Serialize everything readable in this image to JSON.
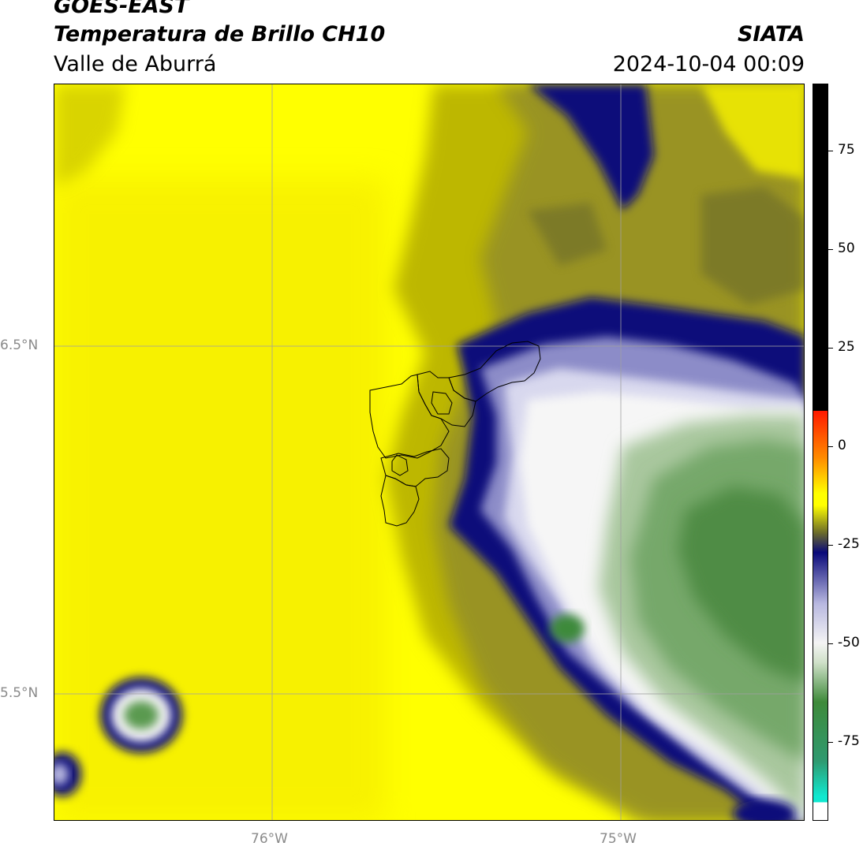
{
  "header": {
    "satellite": "GOES-EAST",
    "product": "Temperatura de Brillo CH10",
    "region": "Valle de Aburrá",
    "organization": "SIATA",
    "timestamp": "2024-10-04 00:09"
  },
  "axes": {
    "x_ticks": [
      {
        "label": "76°W",
        "value": -76.0
      },
      {
        "label": "75°W",
        "value": -75.0
      }
    ],
    "y_ticks": [
      {
        "label": "6.5°N",
        "value": 6.5
      },
      {
        "label": "5.5°N",
        "value": 5.5
      }
    ],
    "gridlines": true
  },
  "colorbar": {
    "labels": [
      "75",
      "50",
      "25",
      "0",
      "-25",
      "-50",
      "-75"
    ],
    "values": [
      75,
      50,
      25,
      0,
      -25,
      -50,
      -75
    ],
    "range": [
      -95,
      92
    ],
    "colors": {
      "hot": "#000000",
      "warm_top": "#ff1a00",
      "orange": "#ff8c00",
      "yellow": "#ffff00",
      "olive": "#6b6b2a",
      "navy": "#0a0a7a",
      "lavender": "#b8b8e0",
      "white": "#f4f4f4",
      "green": "#3e8a3a",
      "teal": "#10e8d0"
    }
  },
  "colors": {
    "background_yellow": "#ffff00",
    "map_frame": "#000000",
    "grid": "#a0a0a0"
  }
}
